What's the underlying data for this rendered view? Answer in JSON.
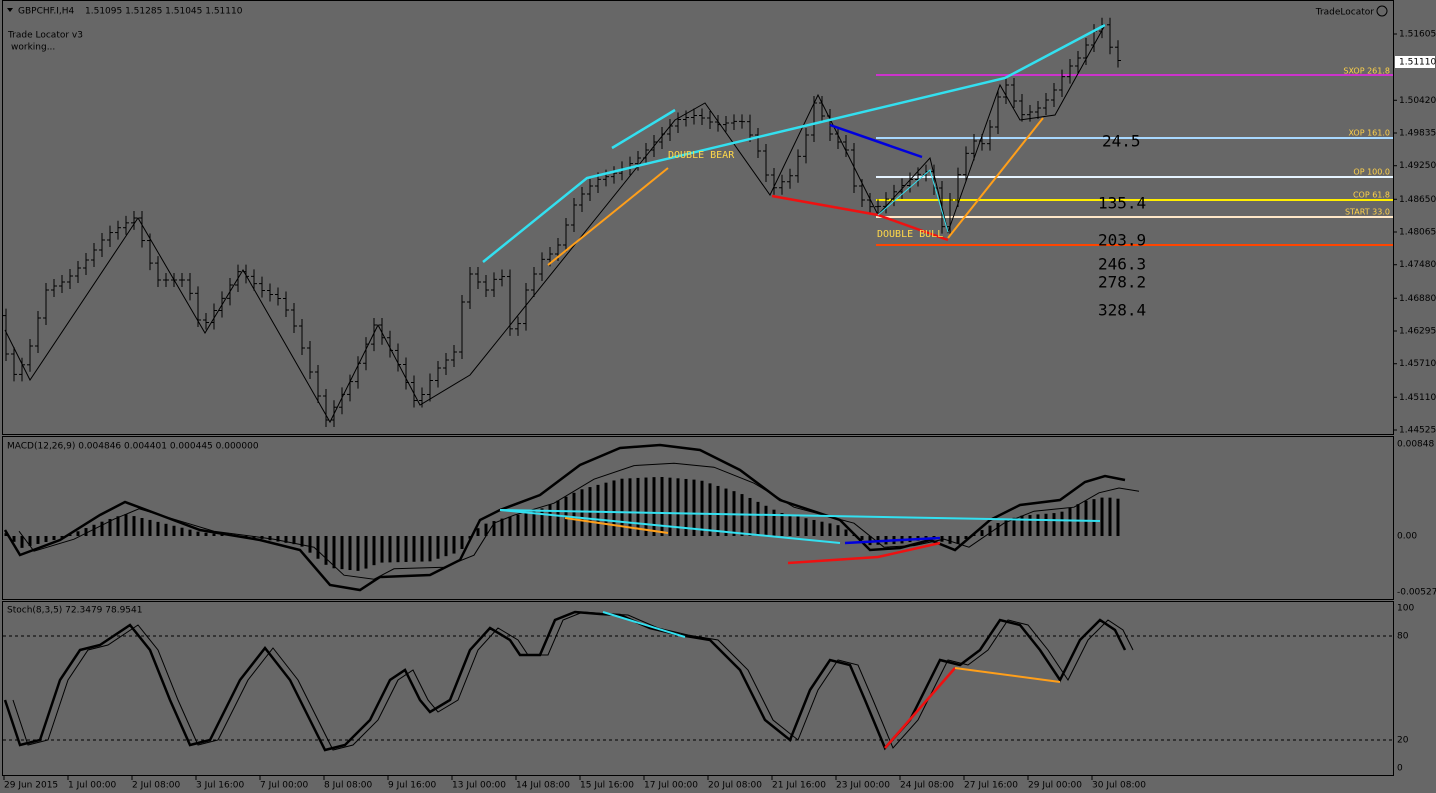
{
  "header": {
    "symbol": "GBPCHF.I,H4",
    "quotes": "1.51095 1.51285 1.51045 1.51110"
  },
  "indicator": {
    "name": "Trade Locator v3",
    "status": "working..."
  },
  "brand": "TradeLocator",
  "current_price": "1.51110",
  "price_axis": [
    "1.51605",
    "1.50420",
    "1.49835",
    "1.49250",
    "1.48650",
    "1.48065",
    "1.47480",
    "1.46880",
    "1.46295",
    "1.45710",
    "1.45110",
    "1.44525"
  ],
  "fib_levels": [
    "SXOP 261.8",
    "XOP 161.0",
    "OP 100.0",
    "COP 61.8",
    "START 33.0"
  ],
  "patterns": [
    "DOUBLE BEAR",
    "DOUBLE BULL"
  ],
  "projections": [
    "24.5",
    "135.4",
    "203.9",
    "246.3",
    "278.2",
    "328.4"
  ],
  "macd": {
    "label": "MACD(12,26,9) 0.004846 0.004401 0.000445 0.000000",
    "axis": [
      "0.00848",
      "0.00",
      "-0.005274"
    ]
  },
  "stoch": {
    "label": "Stoch(8,3,5) 72.3479 78.9541",
    "axis": [
      "100",
      "80",
      "20",
      "0"
    ]
  },
  "time_axis": [
    "29 Jun 2015",
    "1 Jul 00:00",
    "2 Jul 08:00",
    "3 Jul 16:00",
    "7 Jul 00:00",
    "8 Jul 08:00",
    "9 Jul 16:00",
    "13 Jul 00:00",
    "14 Jul 08:00",
    "15 Jul 16:00",
    "17 Jul 00:00",
    "20 Jul 08:00",
    "21 Jul 16:00",
    "23 Jul 00:00",
    "24 Jul 08:00",
    "27 Jul 16:00",
    "29 Jul 00:00",
    "30 Jul 08:00"
  ]
}
